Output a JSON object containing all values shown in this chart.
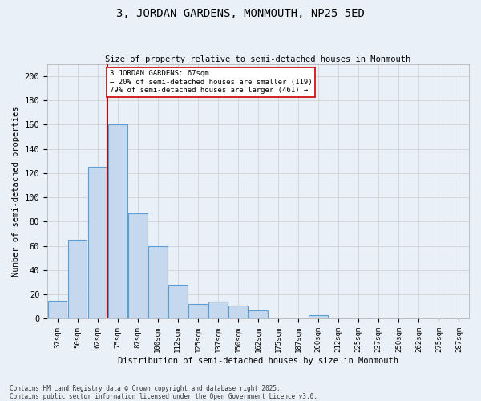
{
  "title": "3, JORDAN GARDENS, MONMOUTH, NP25 5ED",
  "subtitle": "Size of property relative to semi-detached houses in Monmouth",
  "xlabel": "Distribution of semi-detached houses by size in Monmouth",
  "ylabel": "Number of semi-detached properties",
  "bins": [
    "37sqm",
    "50sqm",
    "62sqm",
    "75sqm",
    "87sqm",
    "100sqm",
    "112sqm",
    "125sqm",
    "137sqm",
    "150sqm",
    "162sqm",
    "175sqm",
    "187sqm",
    "200sqm",
    "212sqm",
    "225sqm",
    "237sqm",
    "250sqm",
    "262sqm",
    "275sqm",
    "287sqm"
  ],
  "values": [
    15,
    65,
    125,
    160,
    87,
    60,
    28,
    12,
    14,
    11,
    7,
    0,
    0,
    3,
    0,
    0,
    0,
    0,
    0,
    0,
    0
  ],
  "bar_color": "#c5d8ed",
  "bar_edge_color": "#5a9fd4",
  "red_line_x": 2.5,
  "property_label": "3 JORDAN GARDENS: 67sqm",
  "smaller_label": "← 20% of semi-detached houses are smaller (119)",
  "larger_label": "79% of semi-detached houses are larger (461) →",
  "annotation_box_color": "#ffffff",
  "annotation_box_edge": "#cc0000",
  "red_line_color": "#cc0000",
  "ylim": [
    0,
    210
  ],
  "yticks": [
    0,
    20,
    40,
    60,
    80,
    100,
    120,
    140,
    160,
    180,
    200
  ],
  "grid_color": "#cccccc",
  "bg_color": "#eaf0f8",
  "footer1": "Contains HM Land Registry data © Crown copyright and database right 2025.",
  "footer2": "Contains public sector information licensed under the Open Government Licence v3.0."
}
